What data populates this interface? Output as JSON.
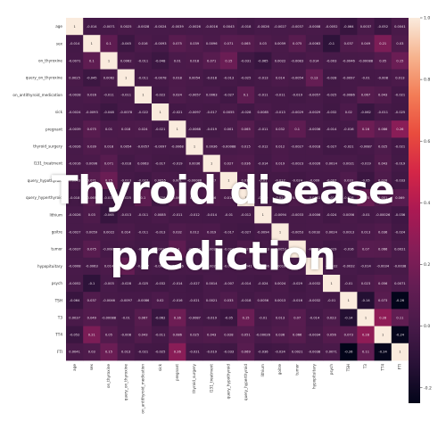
{
  "overlay_title": {
    "line1": "Thyroid disease",
    "line2": "prediction"
  },
  "chart_data": {
    "type": "heatmap",
    "title": "",
    "xlabel": "",
    "ylabel": "",
    "categories": [
      "age",
      "sex",
      "on_thyroxine",
      "query_on_thyroxine",
      "on_antithyroid_medication",
      "sick",
      "pregnant",
      "thyroid_surgery",
      "I131_treatment",
      "query_hypothyroid",
      "query_hyperthyroid",
      "lithium",
      "goitre",
      "tumor",
      "hypopituitary",
      "psych",
      "TSH",
      "T3",
      "TT4",
      "FTI"
    ],
    "matrix": [
      [
        1,
        -0.014,
        -0.0071,
        0.0025,
        -0.0028,
        -0.0024,
        -0.0039,
        -0.0026,
        -0.0016,
        0.0043,
        -0.018,
        -0.0026,
        -0.0027,
        -0.0037,
        -0.0008,
        -0.0052,
        -0.064,
        0.0037,
        -0.052,
        0.0041
      ],
      [
        -0.014,
        1,
        0.1,
        -0.045,
        0.016,
        -0.0093,
        0.075,
        0.039,
        0.0096,
        0.071,
        0.065,
        0.03,
        0.0059,
        0.075,
        -0.0063,
        -0.1,
        0.037,
        0.049,
        0.21,
        0.03
      ],
      [
        -0.0071,
        0.1,
        1,
        0.0062,
        -0.011,
        -0.048,
        0.01,
        0.018,
        0.071,
        0.15,
        -0.031,
        -0.065,
        0.0022,
        -0.0083,
        0.014,
        -0.003,
        -0.0046,
        -0.00088,
        0.05,
        0.15
      ],
      [
        0.0025,
        -0.045,
        0.0062,
        1,
        -0.011,
        -0.0078,
        0.018,
        0.0054,
        -0.018,
        -0.013,
        -0.025,
        -0.013,
        0.014,
        -0.0054,
        0.13,
        -0.028,
        -0.0097,
        -0.01,
        -0.008,
        0.013
      ],
      [
        -0.0028,
        0.016,
        -0.011,
        -0.011,
        1,
        -0.022,
        0.024,
        -0.0057,
        0.0063,
        -0.027,
        0.1,
        -0.011,
        -0.011,
        -0.019,
        -0.0057,
        -0.025,
        -0.0086,
        0.067,
        0.043,
        -0.021
      ],
      [
        -0.0024,
        -0.0093,
        -0.048,
        -0.0078,
        -0.022,
        1,
        -0.021,
        -0.0097,
        -0.017,
        0.0055,
        -0.028,
        0.0085,
        -0.013,
        -0.0029,
        -0.0029,
        -0.032,
        0.02,
        -0.062,
        -0.011,
        -0.025
      ],
      [
        -0.0039,
        0.075,
        0.01,
        0.018,
        0.024,
        -0.021,
        1,
        -0.0068,
        -0.019,
        0.001,
        0.065,
        -0.011,
        0.032,
        0.1,
        -0.0036,
        -0.014,
        -0.016,
        0.16,
        0.086,
        0.26
      ],
      [
        -0.0026,
        0.039,
        0.018,
        0.0054,
        -0.0057,
        -0.0097,
        -0.0068,
        1,
        0.0036,
        -0.00088,
        0.015,
        -0.012,
        0.012,
        -0.0027,
        -0.0018,
        -0.027,
        -0.021,
        -0.0087,
        0.025,
        -0.021
      ],
      [
        -0.0016,
        0.0096,
        0.071,
        -0.018,
        0.0063,
        -0.017,
        -0.019,
        0.0036,
        1,
        0.027,
        0.036,
        -0.014,
        0.019,
        -0.0023,
        -0.0026,
        0.0014,
        0.0021,
        -0.019,
        0.043,
        -0.019
      ],
      [
        0.0043,
        0.071,
        0.15,
        -0.013,
        -0.027,
        0.0055,
        0.001,
        -0.00088,
        0.027,
        1,
        0.016,
        -0.01,
        -0.017,
        -0.024,
        -0.009,
        -0.007,
        0.033,
        -0.05,
        0.028,
        -0.033
      ],
      [
        -0.018,
        0.065,
        -0.031,
        -0.025,
        0.1,
        -0.028,
        0.065,
        0.015,
        0.036,
        0.016,
        1,
        -0.012,
        -0.027,
        0.029,
        -0.0041,
        -0.014,
        -0.018,
        0.15,
        0.051,
        0.069
      ],
      [
        -0.0026,
        0.03,
        -0.065,
        -0.013,
        -0.011,
        0.0085,
        -0.011,
        -0.012,
        -0.014,
        -0.01,
        -0.012,
        1,
        -0.0094,
        -0.0033,
        -0.0006,
        -0.024,
        0.0056,
        -0.01,
        -0.00026,
        -0.036
      ],
      [
        -0.0027,
        0.0059,
        0.0022,
        0.014,
        -0.011,
        -0.013,
        0.032,
        0.012,
        0.019,
        -0.017,
        -0.027,
        -0.0094,
        1,
        -0.0053,
        0.0018,
        0.0024,
        0.0013,
        0.013,
        0.036,
        -0.024
      ],
      [
        -0.0037,
        0.075,
        -0.0083,
        -0.0054,
        -0.019,
        -0.0029,
        0.1,
        -0.0027,
        -0.0023,
        -0.024,
        0.029,
        -0.0033,
        -0.0053,
        1,
        -0.0024,
        -0.029,
        -0.016,
        0.07,
        0.066,
        0.0021
      ],
      [
        -0.0008,
        -0.0063,
        0.014,
        0.13,
        -0.0057,
        -0.0029,
        -0.0036,
        -0.0018,
        -0.0026,
        -0.009,
        -0.0041,
        -0.0006,
        0.0018,
        -0.0024,
        1,
        -0.0032,
        -0.0032,
        -0.014,
        -0.0034,
        -0.0038
      ],
      [
        -0.0052,
        -0.1,
        -0.003,
        -0.028,
        -0.025,
        -0.032,
        -0.014,
        -0.027,
        0.0014,
        -0.007,
        -0.014,
        -0.024,
        0.0024,
        -0.029,
        -0.0032,
        1,
        -0.01,
        0.023,
        0.056,
        0.0071
      ],
      [
        -0.064,
        0.037,
        -0.0046,
        -0.0097,
        -0.0086,
        0.02,
        -0.016,
        -0.021,
        0.0021,
        0.033,
        -0.018,
        0.0056,
        0.0013,
        -0.016,
        -0.0032,
        -0.01,
        1,
        -0.14,
        0.073,
        -0.26
      ],
      [
        0.0037,
        0.049,
        -0.00088,
        -0.01,
        0.067,
        -0.062,
        0.16,
        -0.0087,
        -0.019,
        -0.05,
        0.15,
        -0.01,
        0.013,
        0.07,
        -0.014,
        0.023,
        -0.14,
        1,
        0.28,
        0.11
      ],
      [
        -0.052,
        0.21,
        0.05,
        -0.008,
        0.043,
        -0.011,
        0.086,
        0.025,
        0.043,
        0.028,
        0.051,
        -0.00026,
        0.036,
        0.066,
        -0.0034,
        0.056,
        0.073,
        0.28,
        1,
        -0.24
      ],
      [
        0.0041,
        0.03,
        0.15,
        0.013,
        -0.021,
        -0.025,
        0.26,
        -0.021,
        -0.019,
        -0.033,
        0.069,
        -0.036,
        -0.024,
        0.0021,
        -0.0038,
        0.0071,
        -0.26,
        0.11,
        -0.24,
        1
      ]
    ],
    "colorbar": {
      "range": [
        -0.25,
        1.0
      ],
      "ticks": [
        "1.0",
        "0.8",
        "0.6",
        "0.4",
        "0.2",
        "0.0",
        "-0.2"
      ]
    },
    "grid": false,
    "legend": "right"
  }
}
